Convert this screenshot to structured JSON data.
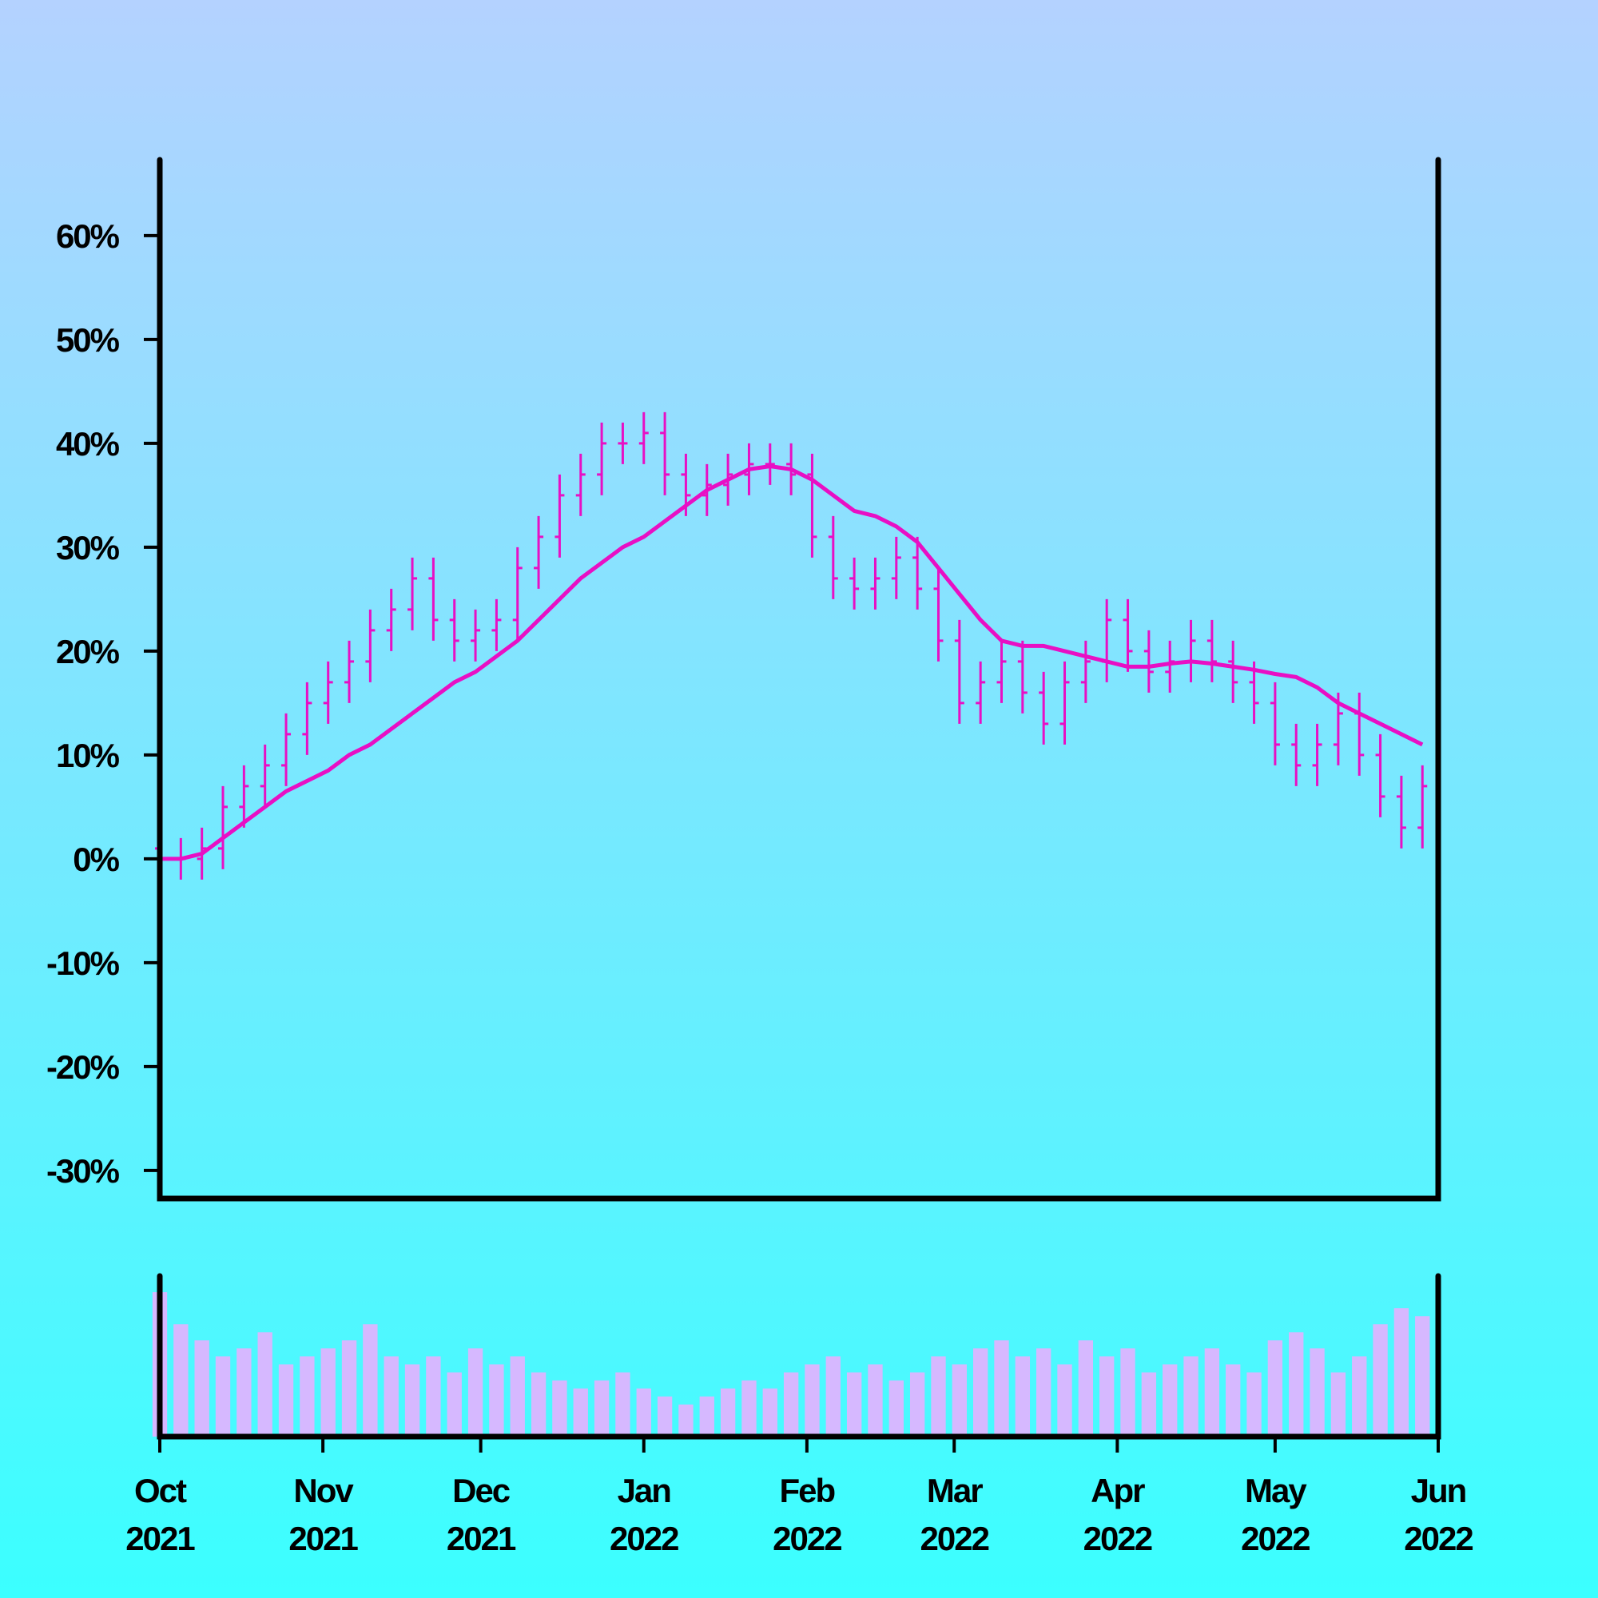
{
  "chart_data": {
    "type": "ohlc",
    "x": [
      "2021-10-01",
      "2021-10-05",
      "2021-10-09",
      "2021-10-13",
      "2021-10-17",
      "2021-10-21",
      "2021-10-25",
      "2021-10-29",
      "2021-11-02",
      "2021-11-06",
      "2021-11-10",
      "2021-11-14",
      "2021-11-18",
      "2021-11-22",
      "2021-11-26",
      "2021-11-30",
      "2021-12-04",
      "2021-12-08",
      "2021-12-12",
      "2021-12-16",
      "2021-12-20",
      "2021-12-24",
      "2021-12-28",
      "2022-01-01",
      "2022-01-05",
      "2022-01-09",
      "2022-01-13",
      "2022-01-17",
      "2022-01-21",
      "2022-01-25",
      "2022-01-29",
      "2022-02-02",
      "2022-02-06",
      "2022-02-10",
      "2022-02-14",
      "2022-02-18",
      "2022-02-22",
      "2022-02-26",
      "2022-03-02",
      "2022-03-06",
      "2022-03-10",
      "2022-03-14",
      "2022-03-18",
      "2022-03-22",
      "2022-03-26",
      "2022-03-30",
      "2022-04-03",
      "2022-04-07",
      "2022-04-11",
      "2022-04-15",
      "2022-04-19",
      "2022-04-23",
      "2022-04-27",
      "2022-05-01",
      "2022-05-05",
      "2022-05-09",
      "2022-05-13",
      "2022-05-17",
      "2022-05-21",
      "2022-05-25",
      "2022-05-29"
    ],
    "open": [
      1,
      0,
      0,
      1,
      5,
      7,
      9,
      12,
      15,
      17,
      19,
      22,
      24,
      27,
      23,
      21,
      22,
      23,
      28,
      31,
      35,
      37,
      40,
      40,
      41,
      37,
      35,
      36,
      37,
      38,
      38,
      37,
      31,
      27,
      26,
      27,
      29,
      26,
      21,
      15,
      17,
      19,
      16,
      13,
      17,
      19,
      23,
      20,
      18,
      19,
      21,
      19,
      17,
      15,
      11,
      9,
      11,
      14,
      10,
      6,
      3
    ],
    "high": [
      3,
      2,
      3,
      7,
      9,
      11,
      14,
      17,
      19,
      21,
      24,
      26,
      29,
      29,
      25,
      24,
      25,
      30,
      33,
      37,
      39,
      42,
      42,
      43,
      43,
      39,
      38,
      39,
      40,
      40,
      40,
      39,
      33,
      29,
      29,
      31,
      31,
      28,
      23,
      19,
      21,
      21,
      18,
      19,
      21,
      25,
      25,
      22,
      21,
      23,
      23,
      21,
      19,
      17,
      13,
      13,
      16,
      16,
      12,
      8,
      9
    ],
    "low": [
      -2,
      -2,
      -2,
      -1,
      3,
      5,
      7,
      10,
      13,
      15,
      17,
      20,
      22,
      21,
      19,
      19,
      20,
      21,
      26,
      29,
      33,
      35,
      38,
      38,
      35,
      33,
      33,
      34,
      35,
      36,
      35,
      29,
      25,
      24,
      24,
      25,
      24,
      19,
      13,
      13,
      15,
      14,
      11,
      11,
      15,
      17,
      18,
      16,
      16,
      17,
      17,
      15,
      13,
      9,
      7,
      7,
      9,
      8,
      4,
      1,
      1
    ],
    "close": [
      0,
      0,
      1,
      5,
      7,
      9,
      12,
      15,
      17,
      19,
      22,
      24,
      27,
      23,
      21,
      22,
      23,
      28,
      31,
      35,
      37,
      40,
      40,
      41,
      37,
      35,
      36,
      37,
      38,
      38,
      37,
      31,
      27,
      26,
      27,
      29,
      26,
      21,
      15,
      17,
      19,
      16,
      13,
      17,
      19,
      23,
      20,
      18,
      19,
      21,
      19,
      17,
      15,
      11,
      9,
      11,
      14,
      10,
      6,
      3,
      7
    ],
    "ma": [
      0,
      0,
      0.5,
      2,
      3.5,
      5,
      6.5,
      7.5,
      8.5,
      10,
      11,
      12.5,
      14,
      15.5,
      17,
      18,
      19.5,
      21,
      23,
      25,
      27,
      28.5,
      30,
      31,
      32.5,
      34,
      35.5,
      36.5,
      37.5,
      37.8,
      37.5,
      36.5,
      35,
      33.5,
      33,
      32,
      30.5,
      28,
      25.5,
      23,
      21,
      20.5,
      20.5,
      20,
      19.5,
      19,
      18.5,
      18.5,
      18.8,
      19,
      18.8,
      18.5,
      18.2,
      17.8,
      17.5,
      16.5,
      15,
      14,
      13,
      12,
      11
    ],
    "volume": [
      90,
      70,
      60,
      50,
      55,
      65,
      45,
      50,
      55,
      60,
      70,
      50,
      45,
      50,
      40,
      55,
      45,
      50,
      40,
      35,
      30,
      35,
      40,
      30,
      25,
      20,
      25,
      30,
      35,
      30,
      40,
      45,
      50,
      40,
      45,
      35,
      40,
      50,
      45,
      55,
      60,
      50,
      55,
      45,
      60,
      50,
      55,
      40,
      45,
      50,
      55,
      45,
      40,
      60,
      65,
      55,
      40,
      50,
      70,
      80,
      75
    ],
    "color": "#e80fc4",
    "ma_color": "#e80fc4",
    "volume_color": "#d6b8ff",
    "xlim": [
      "2021-10-01",
      "2022-06-01"
    ],
    "xticks": [
      {
        "value": "2021-10-01",
        "label": "Oct 2021"
      },
      {
        "value": "2021-11-01",
        "label": "Nov 2021"
      },
      {
        "value": "2021-12-01",
        "label": "Dec 2021"
      },
      {
        "value": "2022-01-01",
        "label": "Jan 2022"
      },
      {
        "value": "2022-02-01",
        "label": "Feb 2022"
      },
      {
        "value": "2022-03-01",
        "label": "Mar 2022"
      },
      {
        "value": "2022-04-01",
        "label": "Apr 2022"
      },
      {
        "value": "2022-05-01",
        "label": "May 2022"
      },
      {
        "value": "2022-06-01",
        "label": "Jun 2022"
      }
    ],
    "ylim": [
      -32.7,
      67.3
    ],
    "yticks": [
      {
        "value": -30,
        "label": "-30%"
      },
      {
        "value": -20,
        "label": "-20%"
      },
      {
        "value": -10,
        "label": "-10%"
      },
      {
        "value": 0,
        "label": "0%"
      },
      {
        "value": 10,
        "label": "10%"
      },
      {
        "value": 20,
        "label": "20%"
      },
      {
        "value": 30,
        "label": "30%"
      },
      {
        "value": 40,
        "label": "40%"
      },
      {
        "value": 50,
        "label": "50%"
      },
      {
        "value": 60,
        "label": "60%"
      }
    ],
    "vlim": [
      0,
      100
    ]
  }
}
